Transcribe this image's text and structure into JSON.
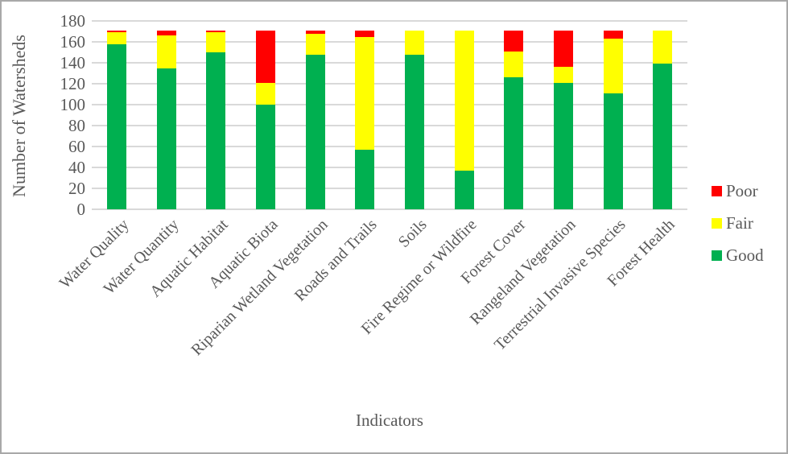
{
  "chart_data": {
    "type": "bar",
    "stacked": true,
    "title": "",
    "xlabel": "Indicators",
    "ylabel": "Number of Watersheds",
    "ylim": [
      0,
      180
    ],
    "ytick_step": 20,
    "grid": true,
    "legend_position": "right",
    "legend_order": [
      "Poor",
      "Fair",
      "Good"
    ],
    "categories": [
      "Water Quality",
      "Water Quantity",
      "Aquatic Habitat",
      "Aquatic Biota",
      "Riparian Wetland Vegetation",
      "Roads and Trails",
      "Soils",
      "Fire Regime or Wildfire",
      "Forest Cover",
      "Rangeland Vegetation",
      "Terrestrial Invasive Species",
      "Forest Health"
    ],
    "series": [
      {
        "name": "Good",
        "color": "#00B050",
        "values": [
          158,
          135,
          150,
          100,
          148,
          57,
          148,
          37,
          126,
          121,
          111,
          139
        ]
      },
      {
        "name": "Fair",
        "color": "#FFFF00",
        "values": [
          11,
          31,
          19,
          21,
          20,
          108,
          23,
          134,
          25,
          15,
          52,
          32
        ]
      },
      {
        "name": "Poor",
        "color": "#FF0000",
        "values": [
          2,
          5,
          2,
          50,
          3,
          6,
          0,
          0,
          20,
          35,
          8,
          0
        ]
      }
    ],
    "colors": {
      "Poor": "#FF0000",
      "Fair": "#FFFF00",
      "Good": "#00B050"
    },
    "gridline_color": "#D9D9D9",
    "text_color": "#595959"
  }
}
